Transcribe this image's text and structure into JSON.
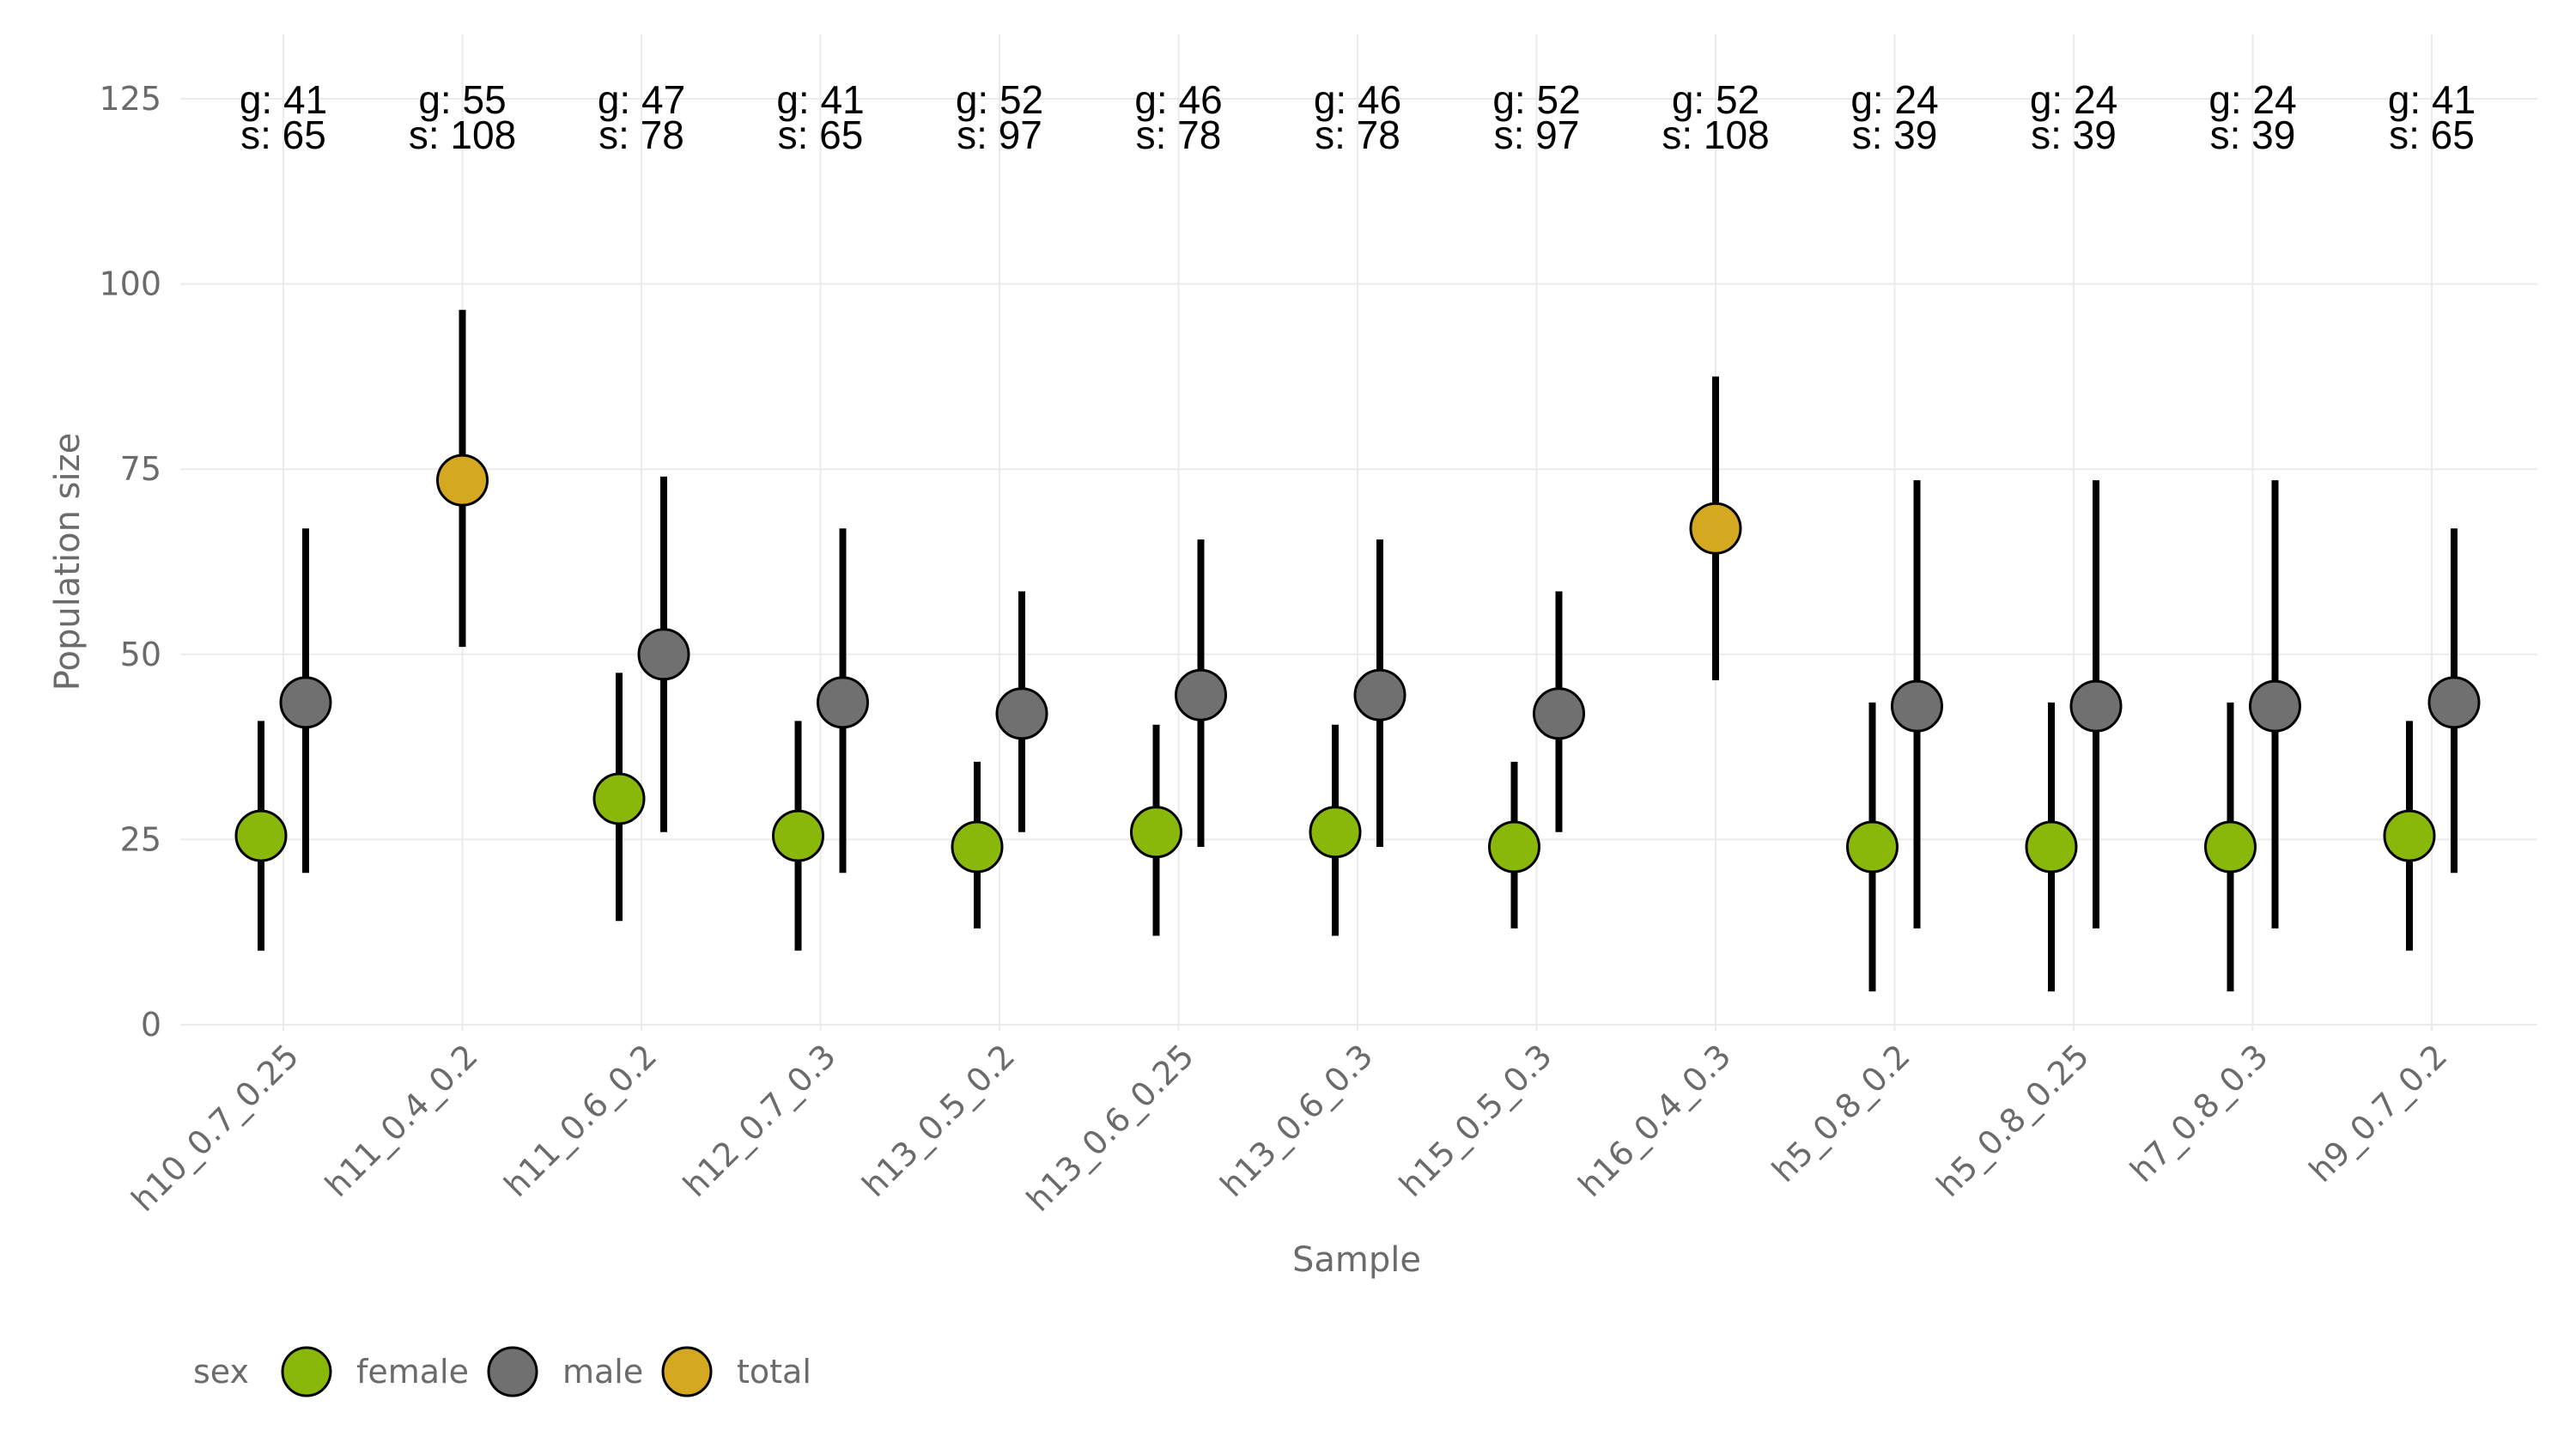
{
  "chart_data": {
    "type": "scatter",
    "xlabel": "Sample",
    "ylabel": "Population size",
    "ylim": [
      0,
      125
    ],
    "yticks": [
      0,
      25,
      50,
      75,
      100,
      125
    ],
    "grid": true,
    "legend": {
      "title": "sex",
      "placement": "bottom-left",
      "entries": [
        {
          "name": "female",
          "color": "#8ab80a"
        },
        {
          "name": "male",
          "color": "#707070"
        },
        {
          "name": "total",
          "color": "#d4a820"
        }
      ]
    },
    "categories": [
      "h10_0.7_0.25",
      "h11_0.4_0.2",
      "h11_0.6_0.2",
      "h12_0.7_0.3",
      "h13_0.5_0.2",
      "h13_0.6_0.25",
      "h13_0.6_0.3",
      "h15_0.5_0.3",
      "h16_0.4_0.3",
      "h5_0.8_0.2",
      "h5_0.8_0.25",
      "h7_0.8_0.3",
      "h9_0.7_0.2"
    ],
    "annotations": [
      {
        "g": "g: 41",
        "s": "s: 65"
      },
      {
        "g": "g: 55",
        "s": "s: 108"
      },
      {
        "g": "g: 47",
        "s": "s: 78"
      },
      {
        "g": "g: 41",
        "s": "s: 65"
      },
      {
        "g": "g: 52",
        "s": "s: 97"
      },
      {
        "g": "g: 46",
        "s": "s: 78"
      },
      {
        "g": "g: 46",
        "s": "s: 78"
      },
      {
        "g": "g: 52",
        "s": "s: 97"
      },
      {
        "g": "g: 52",
        "s": "s: 108"
      },
      {
        "g": "g: 24",
        "s": "s: 39"
      },
      {
        "g": "g: 24",
        "s": "s: 39"
      },
      {
        "g": "g: 24",
        "s": "s: 39"
      },
      {
        "g": "g: 41",
        "s": "s: 65"
      }
    ],
    "series": [
      {
        "name": "female",
        "points": [
          {
            "category": "h10_0.7_0.25",
            "y": 25.5,
            "low": 10,
            "high": 41
          },
          {
            "category": "h11_0.6_0.2",
            "y": 30.5,
            "low": 14,
            "high": 47.5
          },
          {
            "category": "h12_0.7_0.3",
            "y": 25.5,
            "low": 10,
            "high": 41
          },
          {
            "category": "h13_0.5_0.2",
            "y": 24,
            "low": 13,
            "high": 35.5
          },
          {
            "category": "h13_0.6_0.25",
            "y": 26,
            "low": 12,
            "high": 40.5
          },
          {
            "category": "h13_0.6_0.3",
            "y": 26,
            "low": 12,
            "high": 40.5
          },
          {
            "category": "h15_0.5_0.3",
            "y": 24,
            "low": 13,
            "high": 35.5
          },
          {
            "category": "h5_0.8_0.2",
            "y": 24,
            "low": 4.5,
            "high": 43.5
          },
          {
            "category": "h5_0.8_0.25",
            "y": 24,
            "low": 4.5,
            "high": 43.5
          },
          {
            "category": "h7_0.8_0.3",
            "y": 24,
            "low": 4.5,
            "high": 43.5
          },
          {
            "category": "h9_0.7_0.2",
            "y": 25.5,
            "low": 10,
            "high": 41
          }
        ]
      },
      {
        "name": "male",
        "points": [
          {
            "category": "h10_0.7_0.25",
            "y": 43.5,
            "low": 20.5,
            "high": 67
          },
          {
            "category": "h11_0.6_0.2",
            "y": 50,
            "low": 26,
            "high": 74
          },
          {
            "category": "h12_0.7_0.3",
            "y": 43.5,
            "low": 20.5,
            "high": 67
          },
          {
            "category": "h13_0.5_0.2",
            "y": 42,
            "low": 26,
            "high": 58.5
          },
          {
            "category": "h13_0.6_0.25",
            "y": 44.5,
            "low": 24,
            "high": 65.5
          },
          {
            "category": "h13_0.6_0.3",
            "y": 44.5,
            "low": 24,
            "high": 65.5
          },
          {
            "category": "h15_0.5_0.3",
            "y": 42,
            "low": 26,
            "high": 58.5
          },
          {
            "category": "h5_0.8_0.2",
            "y": 43,
            "low": 13,
            "high": 73.5
          },
          {
            "category": "h5_0.8_0.25",
            "y": 43,
            "low": 13,
            "high": 73.5
          },
          {
            "category": "h7_0.8_0.3",
            "y": 43,
            "low": 13,
            "high": 73.5
          },
          {
            "category": "h9_0.7_0.2",
            "y": 43.5,
            "low": 20.5,
            "high": 67
          }
        ]
      },
      {
        "name": "total",
        "points": [
          {
            "category": "h11_0.4_0.2",
            "y": 73.5,
            "low": 51,
            "high": 96.5
          },
          {
            "category": "h16_0.4_0.3",
            "y": 67,
            "low": 46.5,
            "high": 87.5
          }
        ]
      }
    ]
  }
}
